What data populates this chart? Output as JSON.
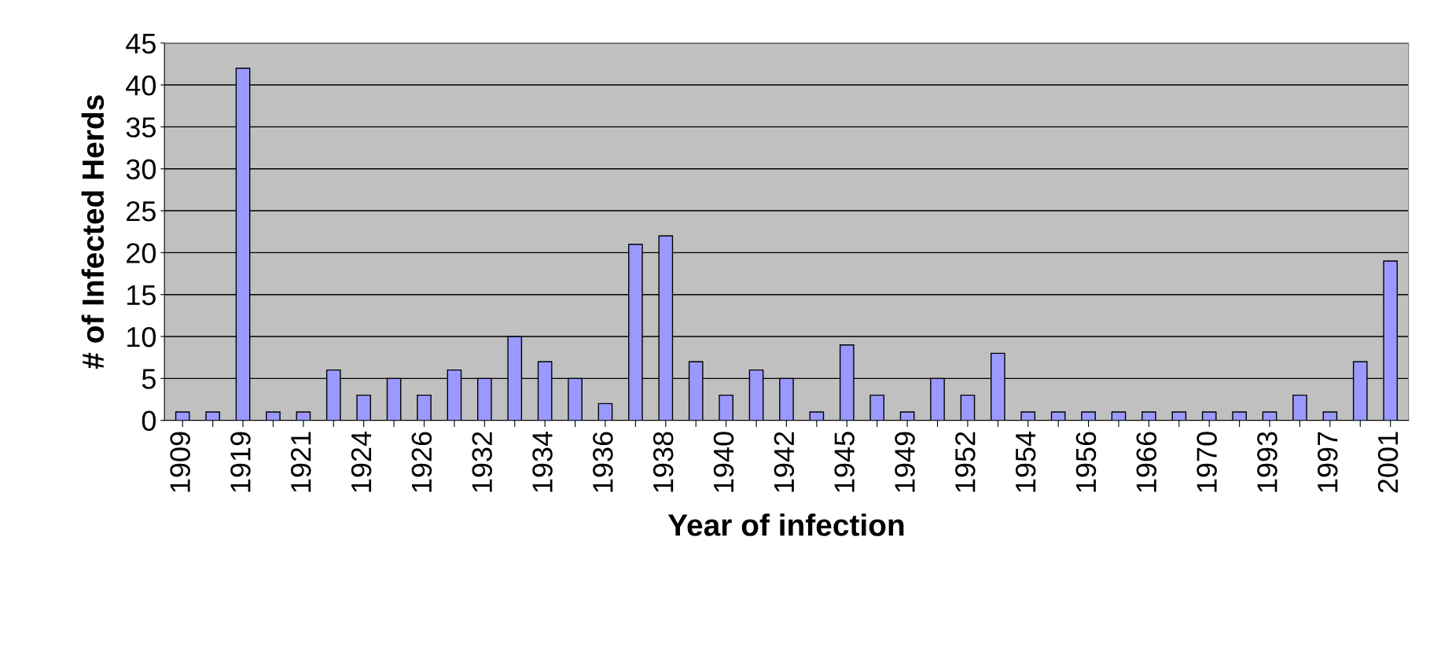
{
  "chart_data": {
    "type": "bar",
    "xlabel": "Year of infection",
    "ylabel": "# of Infected Herds",
    "categories": [
      "1909",
      null,
      "1919",
      null,
      "1921",
      null,
      "1924",
      null,
      "1926",
      null,
      "1932",
      null,
      "1934",
      null,
      "1936",
      null,
      "1938",
      null,
      "1940",
      null,
      "1942",
      null,
      "1945",
      null,
      "1949",
      null,
      "1952",
      null,
      "1954",
      null,
      "1956",
      null,
      "1966",
      null,
      "1970",
      null,
      "1993",
      null,
      "1997",
      null,
      "2001"
    ],
    "values": [
      1,
      1,
      42,
      1,
      1,
      6,
      3,
      5,
      3,
      6,
      5,
      10,
      7,
      5,
      2,
      21,
      22,
      7,
      3,
      6,
      5,
      1,
      9,
      3,
      1,
      5,
      3,
      8,
      1,
      1,
      1,
      1,
      1,
      1,
      1,
      1,
      1,
      3,
      1,
      7,
      19
    ],
    "color": "#9999ff",
    "ylim": [
      0,
      45
    ],
    "yticks": [
      0,
      5,
      10,
      15,
      20,
      25,
      30,
      35,
      40,
      45
    ],
    "grid": "y",
    "legend": false
  }
}
